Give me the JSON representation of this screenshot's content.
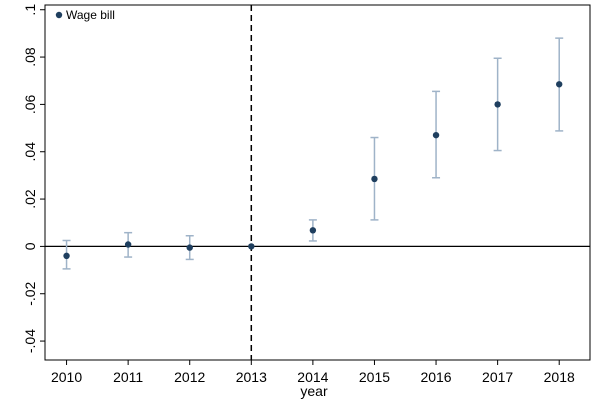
{
  "chart_data": {
    "type": "scatter",
    "xlabel": "year",
    "ylabel": "",
    "xlim": [
      2009.65,
      2018.5
    ],
    "ylim": [
      -0.048,
      0.102
    ],
    "x_ticks": [
      2010,
      2011,
      2012,
      2013,
      2014,
      2015,
      2016,
      2017,
      2018
    ],
    "y_ticks": [
      {
        "value": -0.04,
        "label": "-.04"
      },
      {
        "value": -0.02,
        "label": "-.02"
      },
      {
        "value": 0,
        "label": "0"
      },
      {
        "value": 0.02,
        "label": ".02"
      },
      {
        "value": 0.04,
        "label": ".04"
      },
      {
        "value": 0.06,
        "label": ".06"
      },
      {
        "value": 0.08,
        "label": ".08"
      },
      {
        "value": 0.1,
        "label": ".1"
      }
    ],
    "grid": false,
    "legend": "top-left",
    "reference_lines": {
      "horizontal_y": 0,
      "vertical_x": 2013
    },
    "series": [
      {
        "name": "Wage bill",
        "color": "#1f3f5f",
        "ci_color": "#9fb3c8",
        "points": [
          {
            "x": 2010,
            "y": -0.004,
            "lo": -0.0095,
            "hi": 0.0025
          },
          {
            "x": 2011,
            "y": 0.0008,
            "lo": -0.0045,
            "hi": 0.0058
          },
          {
            "x": 2012,
            "y": -0.0005,
            "lo": -0.0055,
            "hi": 0.0045
          },
          {
            "x": 2013,
            "y": 0.0,
            "lo": 0.0,
            "hi": 0.0
          },
          {
            "x": 2014,
            "y": 0.0068,
            "lo": 0.0023,
            "hi": 0.0112
          },
          {
            "x": 2015,
            "y": 0.0285,
            "lo": 0.0112,
            "hi": 0.046
          },
          {
            "x": 2016,
            "y": 0.047,
            "lo": 0.029,
            "hi": 0.0655
          },
          {
            "x": 2017,
            "y": 0.06,
            "lo": 0.0405,
            "hi": 0.0795
          },
          {
            "x": 2018,
            "y": 0.0685,
            "lo": 0.0488,
            "hi": 0.088
          }
        ]
      }
    ]
  }
}
